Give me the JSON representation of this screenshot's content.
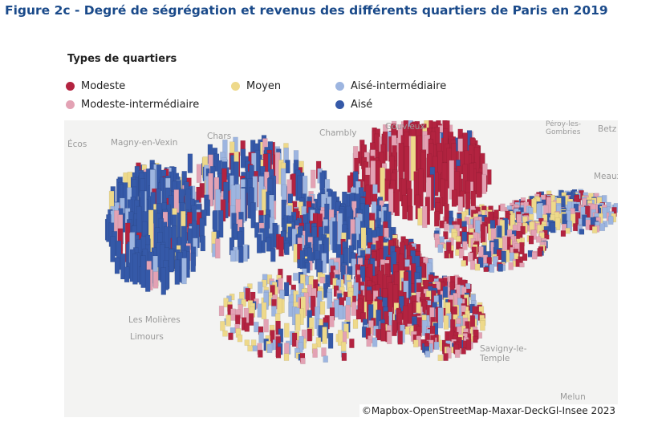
{
  "title": "Figure 2c - Degré de ségrégation et revenus des différents quartiers de Paris en 2019",
  "legend": {
    "title": "Types de quartiers",
    "items": [
      {
        "label": "Modeste",
        "color": "#b32340"
      },
      {
        "label": "Moyen",
        "color": "#eed98a"
      },
      {
        "label": "Aisé-intermédiaire",
        "color": "#9db5e0"
      },
      {
        "label": "Modeste-intermédiaire",
        "color": "#e3a2b4"
      },
      {
        "label": "Aisé",
        "color": "#3559a8"
      }
    ]
  },
  "map": {
    "places": [
      "Écos",
      "Magny-en-Vexin",
      "Chars",
      "Chambly",
      "Gouvieux",
      "Péroy-les-Gombries",
      "Betz",
      "Meaux",
      "Les Molières",
      "Limours",
      "Savigny-le-Temple",
      "Melun"
    ],
    "credit": "©Mapbox-OpenStreetMap-Maxar-DeckGl-Insee 2023"
  }
}
